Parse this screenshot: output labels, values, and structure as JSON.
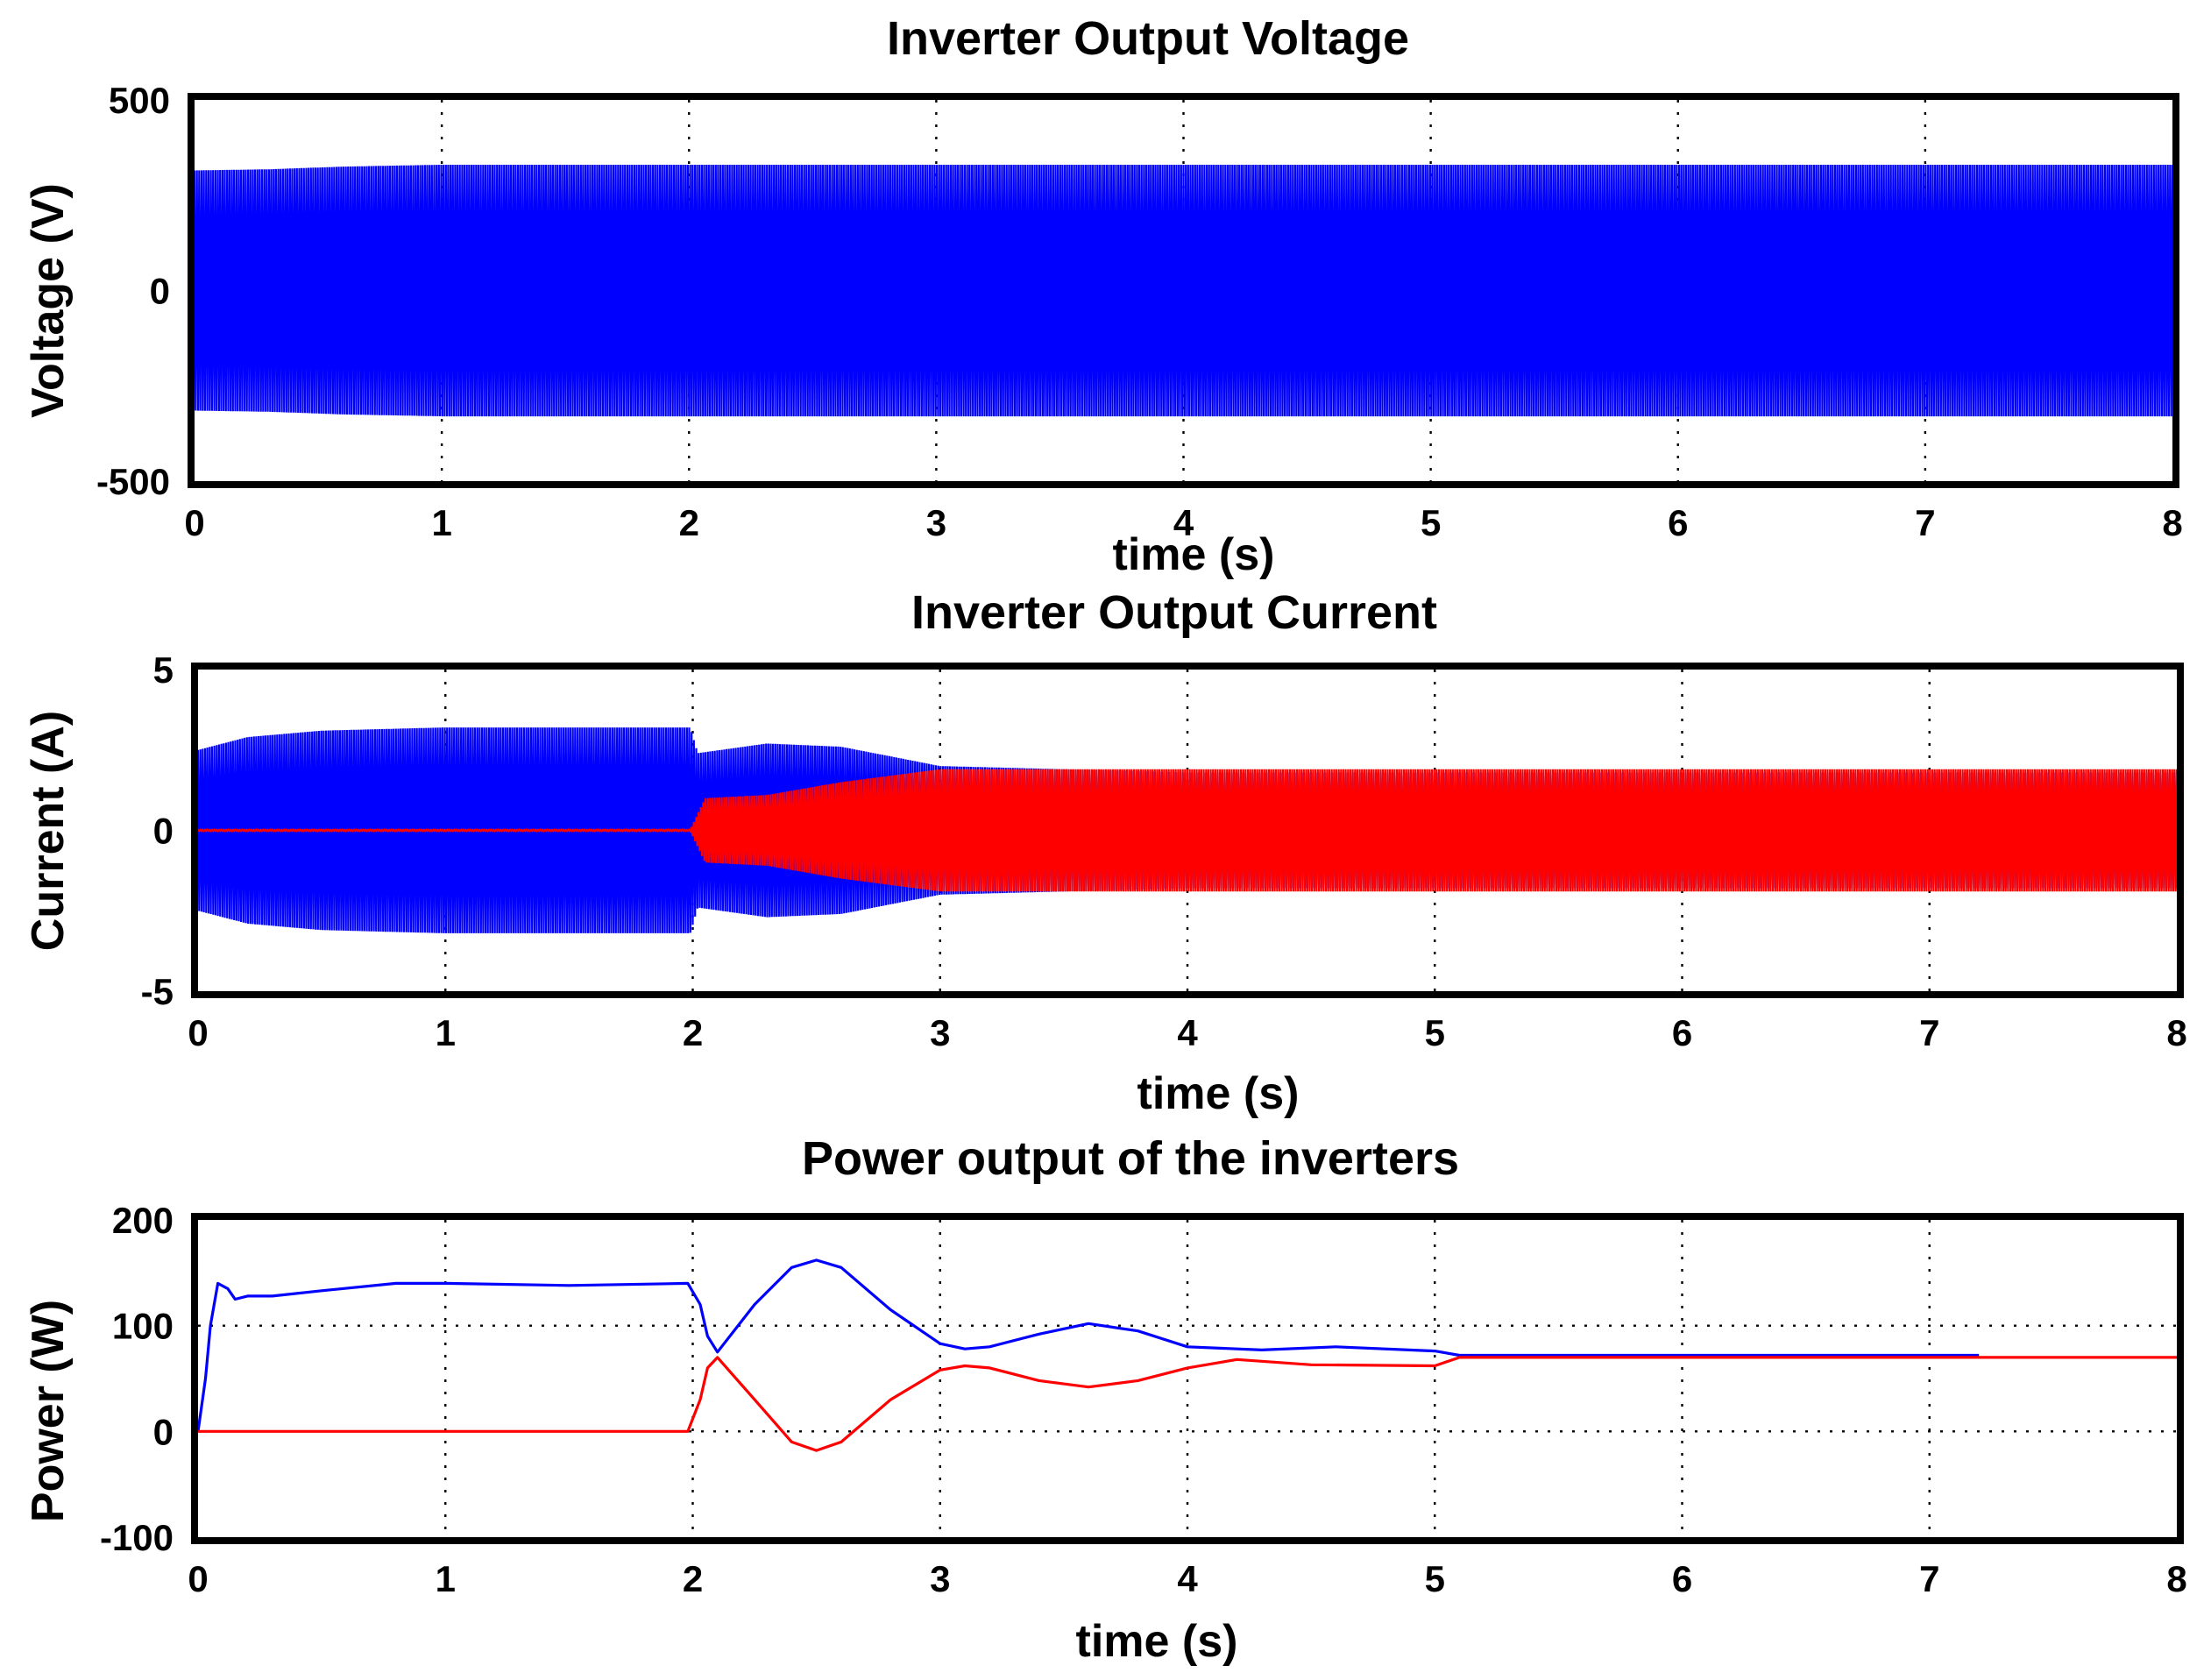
{
  "chart_data": [
    {
      "type": "line",
      "title": "Inverter Output Voltage",
      "xlabel": "time (s)",
      "ylabel": "Voltage (V)",
      "xlim": [
        0,
        8
      ],
      "ylim": [
        -500,
        500
      ],
      "xticks": [
        0,
        1,
        2,
        3,
        4,
        5,
        6,
        7,
        8
      ],
      "yticks": [
        -500,
        0,
        500
      ],
      "grid": true,
      "colors": [
        "#0000ff"
      ],
      "series": [
        {
          "style": "oscillation",
          "color": "#0000ff",
          "envelope": {
            "x": [
              0,
              0.3,
              0.6,
              1,
              2,
              3,
              4,
              5,
              6,
              7,
              8
            ],
            "amplitude": [
              315,
              318,
              325,
              330,
              330,
              330,
              330,
              330,
              330,
              330,
              330
            ]
          }
        }
      ]
    },
    {
      "type": "line",
      "title": "Inverter Output Current",
      "xlabel": "time (s)",
      "ylabel": "Current (A)",
      "xlim": [
        0,
        8
      ],
      "ylim": [
        -5,
        5
      ],
      "xticks": [
        0,
        1,
        2,
        3,
        4,
        5,
        6,
        7,
        8
      ],
      "yticks": [
        -5,
        0,
        5
      ],
      "grid": true,
      "colors": [
        "#0000ff",
        "#ff0000"
      ],
      "series": [
        {
          "style": "oscillation",
          "color": "#0000ff",
          "envelope": {
            "x": [
              0,
              0.2,
              0.5,
              1,
              1.99,
              2.02,
              2.3,
              2.6,
              3,
              3.5,
              4,
              5,
              6,
              7,
              8
            ],
            "amplitude": [
              2.5,
              2.9,
              3.1,
              3.2,
              3.2,
              2.4,
              2.7,
              2.6,
              2.0,
              1.9,
              1.8,
              1.8,
              1.8,
              1.8,
              1.8
            ]
          }
        },
        {
          "style": "oscillation",
          "color": "#ff0000",
          "envelope": {
            "x": [
              0,
              1.99,
              2.05,
              2.3,
              2.6,
              3,
              3.5,
              4,
              5,
              6,
              7,
              8
            ],
            "amplitude": [
              0.02,
              0.02,
              1.0,
              1.1,
              1.5,
              1.9,
              1.9,
              1.9,
              1.9,
              1.9,
              1.9,
              1.9
            ]
          }
        }
      ]
    },
    {
      "type": "line",
      "title": "Power output of the inverters",
      "xlabel": "time (s)",
      "ylabel": "Power (W)",
      "xlim": [
        0,
        8
      ],
      "ylim": [
        -100,
        200
      ],
      "xticks": [
        0,
        1,
        2,
        3,
        4,
        5,
        6,
        7,
        8
      ],
      "yticks": [
        -100,
        0,
        100,
        200
      ],
      "grid": true,
      "colors": [
        "#0000ff",
        "#ff0000"
      ],
      "series": [
        {
          "color": "#0000ff",
          "x": [
            0,
            0.03,
            0.05,
            0.08,
            0.12,
            0.15,
            0.2,
            0.3,
            0.5,
            0.8,
            1.0,
            1.5,
            1.98,
            2.03,
            2.06,
            2.1,
            2.25,
            2.4,
            2.5,
            2.6,
            2.8,
            3.0,
            3.1,
            3.2,
            3.4,
            3.6,
            3.8,
            4.0,
            4.3,
            4.6,
            5.0,
            5.1,
            6.0,
            7.2
          ],
          "y": [
            0,
            50,
            100,
            140,
            135,
            125,
            128,
            128,
            133,
            140,
            140,
            138,
            140,
            120,
            90,
            75,
            120,
            155,
            162,
            155,
            115,
            83,
            78,
            80,
            92,
            102,
            95,
            80,
            77,
            80,
            76,
            72,
            72,
            72
          ]
        },
        {
          "color": "#ff0000",
          "x": [
            0,
            1.98,
            2.03,
            2.06,
            2.1,
            2.25,
            2.4,
            2.5,
            2.6,
            2.8,
            3.0,
            3.1,
            3.2,
            3.4,
            3.6,
            3.8,
            4.0,
            4.2,
            4.5,
            5.0,
            5.1,
            8.0
          ],
          "y": [
            0,
            0,
            30,
            60,
            70,
            30,
            -10,
            -18,
            -10,
            30,
            58,
            62,
            60,
            48,
            42,
            48,
            60,
            68,
            63,
            62,
            70,
            70
          ]
        }
      ]
    }
  ]
}
